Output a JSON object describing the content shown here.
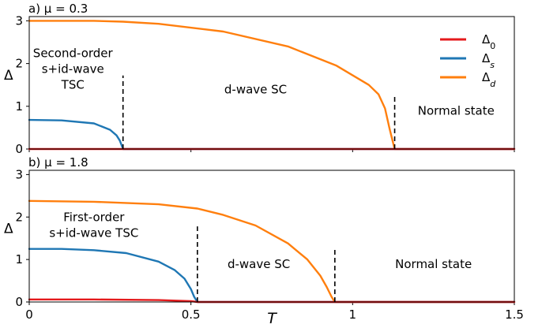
{
  "chart_data": [
    {
      "type": "line",
      "title": "a) μ = 0.3",
      "xlabel": "",
      "ylabel": "Δ",
      "xlim": [
        0,
        1.5
      ],
      "ylim": [
        0,
        3.1
      ],
      "xticks": [
        0,
        0.5,
        1,
        1.5
      ],
      "yticks": [
        0,
        1,
        2,
        3
      ],
      "legend": {
        "placement": "top-right",
        "entries": [
          "Δ0",
          "Δs",
          "Δd"
        ]
      },
      "series": [
        {
          "name": "Δ0",
          "color": "#e41a1c",
          "x": [
            0,
            0.29,
            1.5
          ],
          "y": [
            0,
            0,
            0
          ]
        },
        {
          "name": "Δs",
          "color": "#1f77b4",
          "x": [
            0,
            0.1,
            0.2,
            0.25,
            0.27,
            0.28,
            0.285,
            0.29,
            1.5
          ],
          "y": [
            0.68,
            0.67,
            0.6,
            0.45,
            0.32,
            0.2,
            0.1,
            0.0,
            0.0
          ]
        },
        {
          "name": "Δd",
          "color": "#ff7f0e",
          "x": [
            0,
            0.2,
            0.29,
            0.4,
            0.6,
            0.8,
            0.95,
            1.05,
            1.08,
            1.1,
            1.115,
            1.125,
            1.13,
            1.5
          ],
          "y": [
            3.0,
            3.0,
            2.98,
            2.93,
            2.75,
            2.4,
            1.95,
            1.5,
            1.28,
            0.95,
            0.45,
            0.15,
            0.0,
            0.0
          ]
        }
      ],
      "transitions": [
        0.29,
        1.13
      ],
      "annotations": [
        {
          "lines": [
            "Second-order",
            "s+id-wave",
            "TSC"
          ],
          "x": 0.135,
          "y": 2.15
        },
        {
          "lines": [
            "d-wave SC"
          ],
          "x": 0.7,
          "y": 1.3
        },
        {
          "lines": [
            "Normal state"
          ],
          "x": 1.32,
          "y": 0.8
        }
      ]
    },
    {
      "type": "line",
      "title": "b) μ = 1.8",
      "xlabel": "T",
      "ylabel": "Δ",
      "xlim": [
        0,
        1.5
      ],
      "ylim": [
        0,
        3.1
      ],
      "xticks": [
        0,
        0.5,
        1,
        1.5
      ],
      "yticks": [
        0,
        1,
        2,
        3
      ],
      "series": [
        {
          "name": "Δ0",
          "color": "#e41a1c",
          "x": [
            0,
            0.2,
            0.4,
            0.5,
            0.52,
            1.5
          ],
          "y": [
            0.06,
            0.06,
            0.045,
            0.02,
            0.0,
            0.0
          ]
        },
        {
          "name": "Δs",
          "color": "#1f77b4",
          "x": [
            0,
            0.1,
            0.2,
            0.3,
            0.4,
            0.45,
            0.48,
            0.5,
            0.51,
            0.52,
            1.5
          ],
          "y": [
            1.25,
            1.25,
            1.22,
            1.15,
            0.95,
            0.75,
            0.55,
            0.3,
            0.12,
            0.0,
            0.0
          ]
        },
        {
          "name": "Δd",
          "color": "#ff7f0e",
          "x": [
            0,
            0.2,
            0.4,
            0.52,
            0.6,
            0.7,
            0.8,
            0.86,
            0.9,
            0.92,
            0.935,
            0.945,
            1.5
          ],
          "y": [
            2.38,
            2.36,
            2.3,
            2.2,
            2.05,
            1.8,
            1.38,
            1.0,
            0.62,
            0.35,
            0.12,
            0.0,
            0.0
          ]
        }
      ],
      "transitions": [
        0.52,
        0.945
      ],
      "annotations": [
        {
          "lines": [
            "First-order",
            "s+id-wave TSC"
          ],
          "x": 0.2,
          "y": 1.9
        },
        {
          "lines": [
            "d-wave SC"
          ],
          "x": 0.71,
          "y": 0.8
        },
        {
          "lines": [
            "Normal state"
          ],
          "x": 1.25,
          "y": 0.8
        }
      ]
    }
  ]
}
